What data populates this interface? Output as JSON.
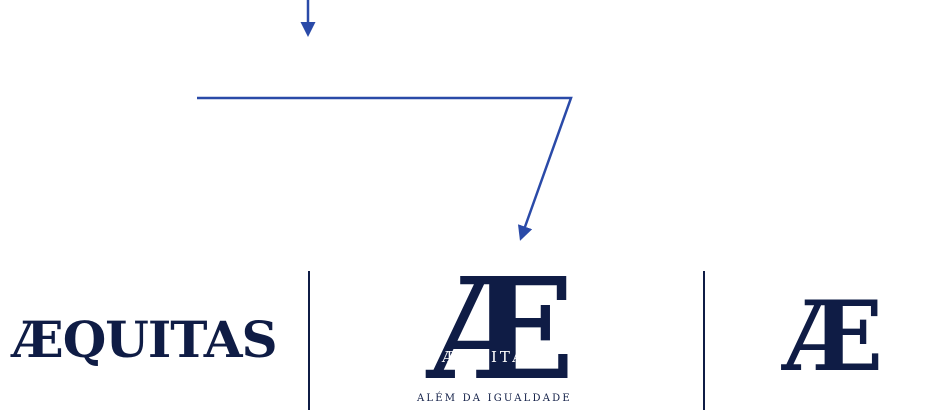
{
  "logos": {
    "wordmark": "ÆQUITAS",
    "emblem_glyph": "Æ",
    "emblem_word": "ÆQUITAS",
    "emblem_tagline": "ALÉM DA IGUALDADE",
    "symbol": "Æ"
  },
  "colors": {
    "arrow": "#2a4aa8",
    "logo": "#0f1c45"
  }
}
